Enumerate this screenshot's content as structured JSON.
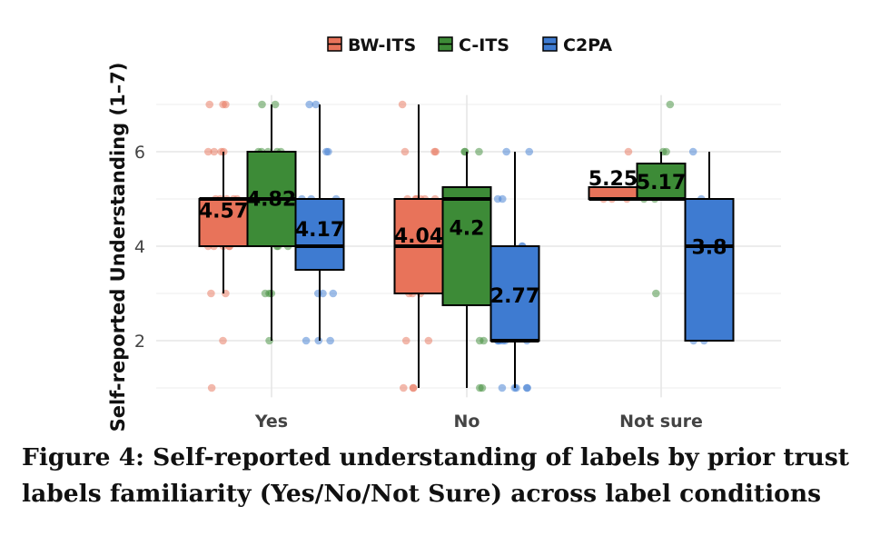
{
  "caption": "Figure 4: Self-reported understanding of labels by prior trust\nlabels familiarity (Yes/No/Not Sure) across label conditions",
  "chart_data": {
    "type": "box",
    "categories": [
      "Yes",
      "No",
      "Not sure"
    ],
    "ylabel": "Self-reported Understanding (1–7)",
    "xlabel": "",
    "ylim": [
      0.8,
      7.2
    ],
    "yticks": [
      2,
      4,
      6
    ],
    "grid": true,
    "legend_position": "top",
    "series": [
      {
        "name": "BW-ITS",
        "color": "#e8735a",
        "boxes": [
          {
            "category": "Yes",
            "min": 3,
            "q1": 4,
            "median": 5,
            "q3": 5,
            "max": 6,
            "mean": 4.57,
            "mean_label": "4.57",
            "points": [
              7,
              7,
              7,
              6,
              6,
              6,
              6,
              5,
              5,
              5,
              5,
              5,
              4,
              4,
              4,
              4,
              4,
              3,
              3,
              2,
              1
            ]
          },
          {
            "category": "No",
            "min": 1,
            "q1": 3,
            "median": 4,
            "q3": 5,
            "max": 7,
            "mean": 4.04,
            "mean_label": "4.04",
            "points": [
              7,
              6,
              6,
              6,
              5,
              5,
              5,
              5,
              5,
              5,
              4,
              4,
              4,
              4,
              3,
              3,
              3,
              2,
              2,
              1,
              1,
              1
            ]
          },
          {
            "category": "Not sure",
            "min": 5,
            "q1": 5,
            "median": 5,
            "q3": 5.25,
            "max": 5.25,
            "mean": 5.25,
            "mean_label": "5.25",
            "points": [
              6,
              5,
              5,
              5
            ]
          }
        ]
      },
      {
        "name": "C-ITS",
        "color": "#3d8b37",
        "boxes": [
          {
            "category": "Yes",
            "min": 2,
            "q1": 4,
            "median": 5,
            "q3": 6,
            "max": 7,
            "mean": 4.82,
            "mean_label": "4.82",
            "points": [
              7,
              7,
              6,
              6,
              6,
              6,
              6,
              5,
              5,
              5,
              5,
              4,
              4,
              4,
              3,
              3,
              3,
              2
            ]
          },
          {
            "category": "No",
            "min": 1,
            "q1": 2.75,
            "median": 5,
            "q3": 5.25,
            "max": 6,
            "mean": 4.2,
            "mean_label": "4.2",
            "points": [
              6,
              6,
              6,
              5,
              5,
              5,
              4,
              4,
              3,
              2,
              2,
              1,
              1
            ]
          },
          {
            "category": "Not sure",
            "min": 5,
            "q1": 5,
            "median": 5,
            "q3": 5.75,
            "max": 6,
            "mean": 5.17,
            "mean_label": "5.17",
            "points": [
              7,
              6,
              6,
              5,
              5,
              3
            ]
          }
        ]
      },
      {
        "name": "C2PA",
        "color": "#3e7bd1",
        "boxes": [
          {
            "category": "Yes",
            "min": 2,
            "q1": 3.5,
            "median": 4,
            "q3": 5,
            "max": 7,
            "mean": 4.17,
            "mean_label": "4.17",
            "points": [
              7,
              7,
              6,
              6,
              5,
              5,
              5,
              4,
              4,
              4,
              4,
              4,
              3,
              3,
              3,
              2,
              2,
              2
            ]
          },
          {
            "category": "No",
            "min": 1,
            "q1": 2,
            "median": 2,
            "q3": 4,
            "max": 6,
            "mean": 2.77,
            "mean_label": "2.77",
            "points": [
              6,
              6,
              5,
              5,
              4,
              4,
              3,
              3,
              2,
              2,
              2,
              2,
              2,
              2,
              1,
              1,
              1,
              1,
              1
            ]
          },
          {
            "category": "Not sure",
            "min": 2,
            "q1": 2,
            "median": 4,
            "q3": 5,
            "max": 6,
            "mean": 3.8,
            "mean_label": "3.8",
            "points": [
              6,
              5,
              4,
              2,
              2
            ]
          }
        ]
      }
    ]
  }
}
